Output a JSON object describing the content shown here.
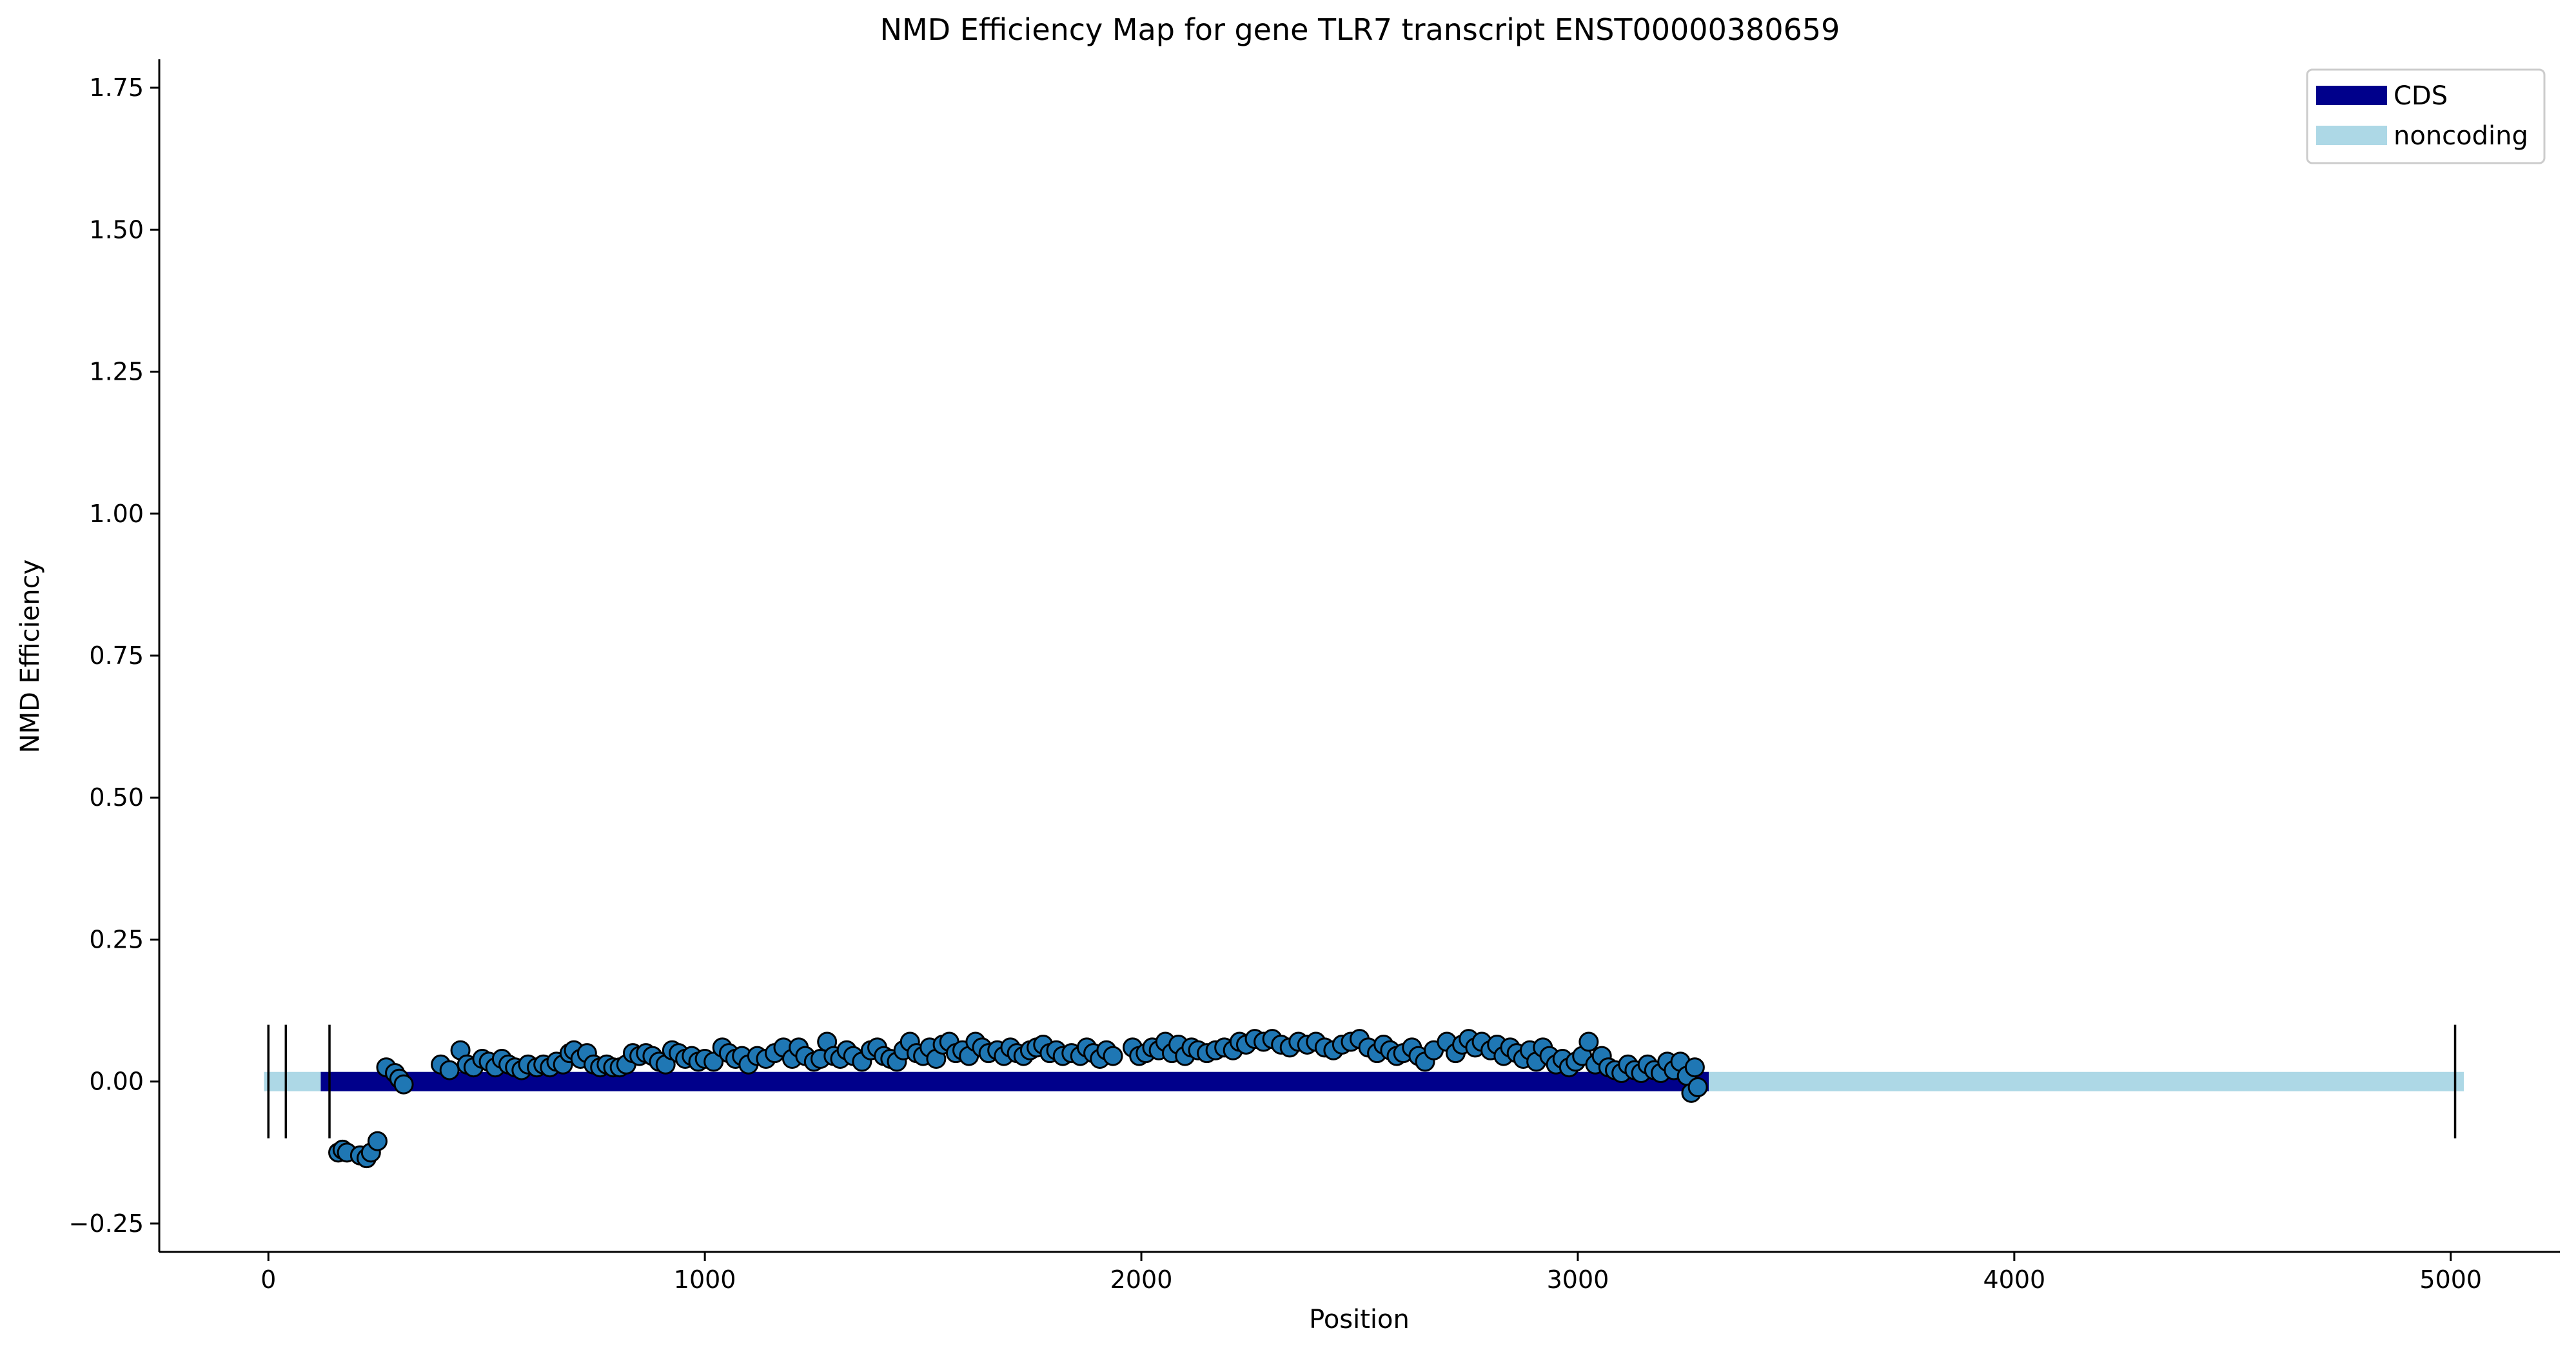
{
  "chart_data": {
    "type": "scatter",
    "title": "NMD Efficiency Map for gene TLR7 transcript ENST00000380659",
    "xlabel": "Position",
    "ylabel": "NMD Efficiency",
    "xlim": [
      -250,
      5250
    ],
    "ylim": [
      -0.3,
      1.8
    ],
    "xticks": [
      0,
      1000,
      2000,
      3000,
      4000,
      5000
    ],
    "xtick_labels": [
      "0",
      "1000",
      "2000",
      "3000",
      "4000",
      "5000"
    ],
    "yticks": [
      -0.25,
      0.0,
      0.25,
      0.5,
      0.75,
      1.0,
      1.25,
      1.5,
      1.75
    ],
    "ytick_labels": [
      "−0.25",
      "0.00",
      "0.25",
      "0.50",
      "0.75",
      "1.00",
      "1.25",
      "1.50",
      "1.75"
    ],
    "grid": false,
    "legend": {
      "placement": "top-right",
      "entries": [
        {
          "label": "CDS",
          "color": "#00008b"
        },
        {
          "label": "noncoding",
          "color": "#add8e6"
        }
      ]
    },
    "tracks": [
      {
        "name": "noncoding",
        "x_start": -10,
        "x_end": 5030,
        "y": 0.0,
        "color": "#add8e6"
      },
      {
        "name": "CDS",
        "x_start": 120,
        "x_end": 3300,
        "y": 0.0,
        "color": "#00008b"
      }
    ],
    "exon_boundaries": [
      0,
      40,
      140,
      5010
    ],
    "boundary_y_range": [
      -0.1,
      0.1
    ],
    "point_color": "#1f77b4",
    "points": [
      [
        160,
        -0.125
      ],
      [
        170,
        -0.12
      ],
      [
        180,
        -0.125
      ],
      [
        210,
        -0.13
      ],
      [
        225,
        -0.135
      ],
      [
        235,
        -0.125
      ],
      [
        250,
        -0.105
      ],
      [
        270,
        0.025
      ],
      [
        290,
        0.015
      ],
      [
        300,
        0.005
      ],
      [
        310,
        -0.005
      ],
      [
        395,
        0.03
      ],
      [
        415,
        0.02
      ],
      [
        440,
        0.055
      ],
      [
        455,
        0.03
      ],
      [
        470,
        0.025
      ],
      [
        490,
        0.04
      ],
      [
        505,
        0.035
      ],
      [
        520,
        0.025
      ],
      [
        535,
        0.04
      ],
      [
        550,
        0.03
      ],
      [
        565,
        0.025
      ],
      [
        580,
        0.02
      ],
      [
        595,
        0.03
      ],
      [
        615,
        0.025
      ],
      [
        630,
        0.03
      ],
      [
        645,
        0.025
      ],
      [
        660,
        0.035
      ],
      [
        675,
        0.03
      ],
      [
        690,
        0.05
      ],
      [
        700,
        0.055
      ],
      [
        715,
        0.04
      ],
      [
        730,
        0.05
      ],
      [
        745,
        0.03
      ],
      [
        760,
        0.025
      ],
      [
        775,
        0.03
      ],
      [
        790,
        0.025
      ],
      [
        805,
        0.025
      ],
      [
        820,
        0.03
      ],
      [
        835,
        0.05
      ],
      [
        850,
        0.045
      ],
      [
        865,
        0.05
      ],
      [
        880,
        0.045
      ],
      [
        895,
        0.035
      ],
      [
        910,
        0.03
      ],
      [
        925,
        0.055
      ],
      [
        940,
        0.05
      ],
      [
        955,
        0.04
      ],
      [
        970,
        0.045
      ],
      [
        985,
        0.035
      ],
      [
        1000,
        0.04
      ],
      [
        1020,
        0.035
      ],
      [
        1040,
        0.06
      ],
      [
        1055,
        0.05
      ],
      [
        1070,
        0.04
      ],
      [
        1085,
        0.045
      ],
      [
        1100,
        0.03
      ],
      [
        1120,
        0.045
      ],
      [
        1140,
        0.04
      ],
      [
        1160,
        0.05
      ],
      [
        1180,
        0.06
      ],
      [
        1200,
        0.04
      ],
      [
        1215,
        0.06
      ],
      [
        1230,
        0.045
      ],
      [
        1250,
        0.035
      ],
      [
        1265,
        0.04
      ],
      [
        1280,
        0.07
      ],
      [
        1295,
        0.045
      ],
      [
        1310,
        0.04
      ],
      [
        1325,
        0.055
      ],
      [
        1340,
        0.045
      ],
      [
        1360,
        0.035
      ],
      [
        1380,
        0.055
      ],
      [
        1395,
        0.06
      ],
      [
        1410,
        0.045
      ],
      [
        1425,
        0.04
      ],
      [
        1440,
        0.035
      ],
      [
        1455,
        0.055
      ],
      [
        1470,
        0.07
      ],
      [
        1485,
        0.05
      ],
      [
        1500,
        0.045
      ],
      [
        1515,
        0.06
      ],
      [
        1530,
        0.04
      ],
      [
        1545,
        0.065
      ],
      [
        1560,
        0.07
      ],
      [
        1575,
        0.05
      ],
      [
        1590,
        0.055
      ],
      [
        1605,
        0.045
      ],
      [
        1620,
        0.07
      ],
      [
        1635,
        0.06
      ],
      [
        1650,
        0.05
      ],
      [
        1670,
        0.055
      ],
      [
        1685,
        0.045
      ],
      [
        1700,
        0.06
      ],
      [
        1715,
        0.05
      ],
      [
        1730,
        0.045
      ],
      [
        1745,
        0.055
      ],
      [
        1760,
        0.06
      ],
      [
        1775,
        0.065
      ],
      [
        1790,
        0.05
      ],
      [
        1805,
        0.055
      ],
      [
        1820,
        0.045
      ],
      [
        1840,
        0.05
      ],
      [
        1860,
        0.045
      ],
      [
        1875,
        0.06
      ],
      [
        1890,
        0.05
      ],
      [
        1905,
        0.04
      ],
      [
        1920,
        0.055
      ],
      [
        1935,
        0.045
      ],
      [
        1980,
        0.06
      ],
      [
        1995,
        0.045
      ],
      [
        2010,
        0.05
      ],
      [
        2025,
        0.06
      ],
      [
        2040,
        0.055
      ],
      [
        2055,
        0.07
      ],
      [
        2070,
        0.05
      ],
      [
        2085,
        0.065
      ],
      [
        2100,
        0.045
      ],
      [
        2115,
        0.06
      ],
      [
        2130,
        0.055
      ],
      [
        2150,
        0.05
      ],
      [
        2170,
        0.055
      ],
      [
        2190,
        0.06
      ],
      [
        2210,
        0.055
      ],
      [
        2225,
        0.07
      ],
      [
        2240,
        0.065
      ],
      [
        2260,
        0.075
      ],
      [
        2280,
        0.07
      ],
      [
        2300,
        0.075
      ],
      [
        2320,
        0.065
      ],
      [
        2340,
        0.06
      ],
      [
        2360,
        0.07
      ],
      [
        2380,
        0.065
      ],
      [
        2400,
        0.07
      ],
      [
        2420,
        0.06
      ],
      [
        2440,
        0.055
      ],
      [
        2460,
        0.065
      ],
      [
        2480,
        0.07
      ],
      [
        2500,
        0.075
      ],
      [
        2520,
        0.06
      ],
      [
        2540,
        0.05
      ],
      [
        2555,
        0.065
      ],
      [
        2570,
        0.055
      ],
      [
        2585,
        0.045
      ],
      [
        2600,
        0.05
      ],
      [
        2620,
        0.06
      ],
      [
        2635,
        0.045
      ],
      [
        2650,
        0.035
      ],
      [
        2670,
        0.055
      ],
      [
        2700,
        0.07
      ],
      [
        2720,
        0.05
      ],
      [
        2735,
        0.065
      ],
      [
        2750,
        0.075
      ],
      [
        2765,
        0.06
      ],
      [
        2780,
        0.07
      ],
      [
        2800,
        0.055
      ],
      [
        2815,
        0.065
      ],
      [
        2830,
        0.045
      ],
      [
        2845,
        0.06
      ],
      [
        2860,
        0.05
      ],
      [
        2875,
        0.04
      ],
      [
        2890,
        0.055
      ],
      [
        2905,
        0.035
      ],
      [
        2920,
        0.06
      ],
      [
        2935,
        0.045
      ],
      [
        2950,
        0.03
      ],
      [
        2965,
        0.04
      ],
      [
        2980,
        0.025
      ],
      [
        2995,
        0.035
      ],
      [
        3010,
        0.045
      ],
      [
        3025,
        0.07
      ],
      [
        3040,
        0.03
      ],
      [
        3055,
        0.045
      ],
      [
        3070,
        0.025
      ],
      [
        3085,
        0.02
      ],
      [
        3100,
        0.015
      ],
      [
        3115,
        0.03
      ],
      [
        3130,
        0.02
      ],
      [
        3145,
        0.015
      ],
      [
        3160,
        0.03
      ],
      [
        3175,
        0.02
      ],
      [
        3190,
        0.015
      ],
      [
        3205,
        0.035
      ],
      [
        3220,
        0.02
      ],
      [
        3235,
        0.035
      ],
      [
        3250,
        0.01
      ],
      [
        3260,
        -0.02
      ],
      [
        3268,
        0.025
      ],
      [
        3275,
        -0.01
      ]
    ]
  }
}
